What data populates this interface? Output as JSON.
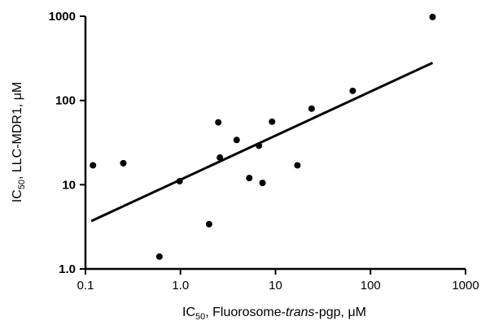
{
  "chart_data": {
    "type": "scatter",
    "x_scale": "log",
    "y_scale": "log",
    "xlim": [
      0.1,
      1000
    ],
    "ylim": [
      1.0,
      1000
    ],
    "x_ticks": [
      "0.1",
      "1.0",
      "10",
      "100",
      "1000"
    ],
    "y_ticks": [
      "1.0",
      "10",
      "100",
      "1000"
    ],
    "xlabel": {
      "prefix": "IC",
      "subscript": "50",
      "middle": ", Fluorosome-",
      "italic": "trans",
      "suffix": "-pgp, μM"
    },
    "ylabel": {
      "prefix": "IC",
      "subscript": "50",
      "suffix": ", LLC-MDR1, μM"
    },
    "points": [
      {
        "x": 0.12,
        "y": 17
      },
      {
        "x": 0.25,
        "y": 18
      },
      {
        "x": 0.6,
        "y": 1.4
      },
      {
        "x": 0.98,
        "y": 11
      },
      {
        "x": 2.0,
        "y": 3.4
      },
      {
        "x": 2.5,
        "y": 55
      },
      {
        "x": 2.6,
        "y": 21
      },
      {
        "x": 3.9,
        "y": 34
      },
      {
        "x": 5.3,
        "y": 12
      },
      {
        "x": 6.7,
        "y": 29
      },
      {
        "x": 7.3,
        "y": 10.5
      },
      {
        "x": 9.2,
        "y": 56
      },
      {
        "x": 17,
        "y": 17
      },
      {
        "x": 24,
        "y": 80
      },
      {
        "x": 65,
        "y": 130
      },
      {
        "x": 450,
        "y": 980
      }
    ],
    "fit_line": {
      "x": [
        0.115,
        450
      ],
      "y": [
        3.7,
        280
      ]
    },
    "grid": false,
    "legend": "none"
  }
}
